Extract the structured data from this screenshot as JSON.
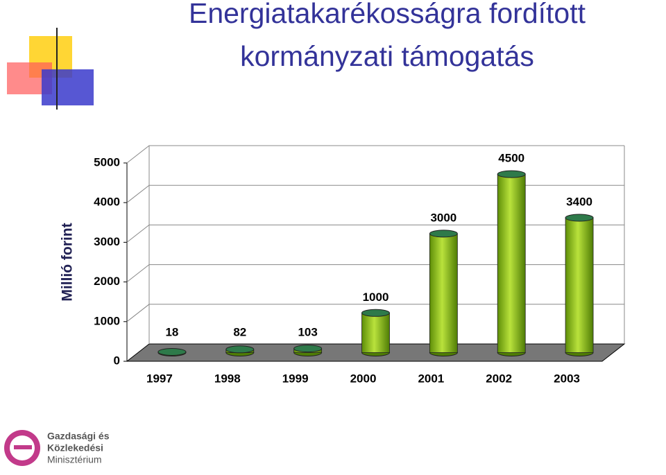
{
  "chart_data": {
    "type": "bar",
    "title": "Energiatakarékosságra fordított kormányzati támogatás",
    "y_label": "Millió forint",
    "categories": [
      "1997",
      "1998",
      "1999",
      "2000",
      "2001",
      "2002",
      "2003"
    ],
    "values": [
      18,
      82,
      103,
      1000,
      3000,
      4500,
      3400
    ],
    "color": "#8cc21c",
    "ylim": [
      0,
      5000
    ],
    "yticks": [
      0,
      1000,
      2000,
      3000,
      4000,
      5000
    ],
    "grid": true
  },
  "logo": {
    "lines": [
      "Gazdasági és",
      "Közlekedési",
      "Minisztérium"
    ]
  }
}
